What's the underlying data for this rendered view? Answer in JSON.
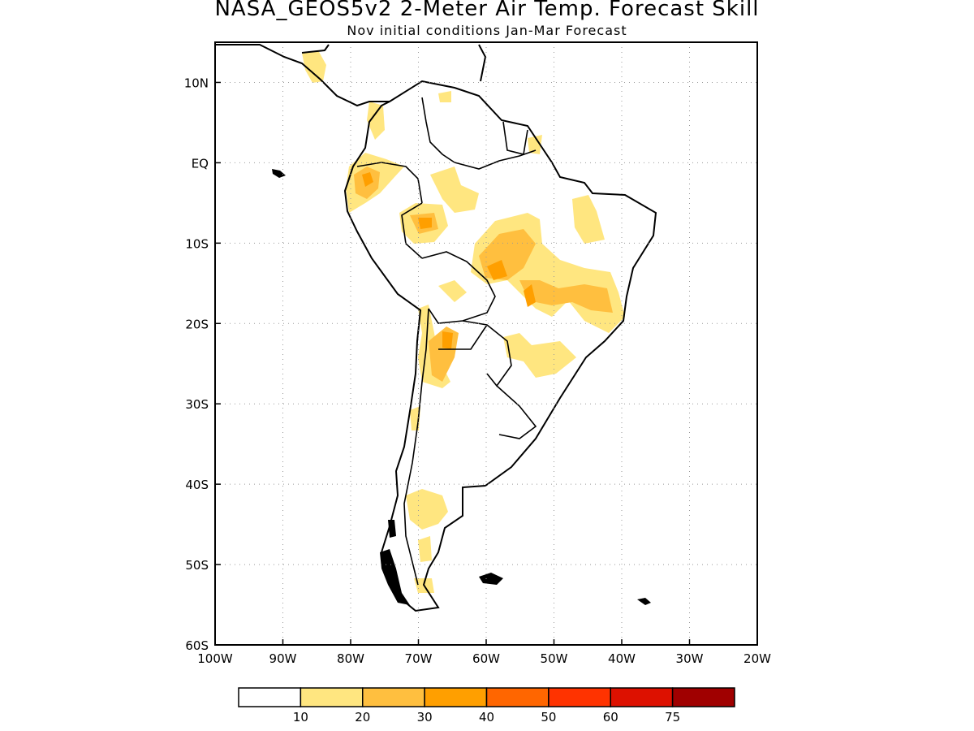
{
  "title": "NASA_GEOS5v2 2-Meter Air Temp. Forecast Skill",
  "subtitle": "Nov initial conditions  Jan-Mar Forecast",
  "map": {
    "lon_range": [
      -100,
      -20
    ],
    "lat_range": [
      -60,
      15
    ],
    "lon_ticks": [
      {
        "value": -100,
        "label": "100W"
      },
      {
        "value": -90,
        "label": "90W"
      },
      {
        "value": -80,
        "label": "80W"
      },
      {
        "value": -70,
        "label": "70W"
      },
      {
        "value": -60,
        "label": "60W"
      },
      {
        "value": -50,
        "label": "50W"
      },
      {
        "value": -40,
        "label": "40W"
      },
      {
        "value": -30,
        "label": "30W"
      },
      {
        "value": -20,
        "label": "20W"
      }
    ],
    "lat_ticks": [
      {
        "value": 10,
        "label": "10N"
      },
      {
        "value": 0,
        "label": "EQ"
      },
      {
        "value": -10,
        "label": "10S"
      },
      {
        "value": -20,
        "label": "20S"
      },
      {
        "value": -30,
        "label": "30S"
      },
      {
        "value": -40,
        "label": "40S"
      },
      {
        "value": -50,
        "label": "50S"
      },
      {
        "value": -60,
        "label": "60S"
      }
    ],
    "grid": true
  },
  "legend": {
    "colors": [
      "#ffffff",
      "#ffe680",
      "#ffbf3f",
      "#ff9f00",
      "#ff6600",
      "#ff3300",
      "#dd1100",
      "#a00000"
    ],
    "labels": [
      "10",
      "20",
      "30",
      "40",
      "50",
      "60",
      "75"
    ]
  }
}
